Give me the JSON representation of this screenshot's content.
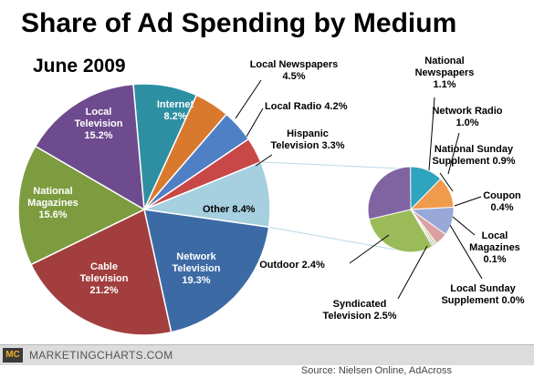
{
  "title": "Share of Ad Spending by Medium",
  "subtitle": "June 2009",
  "footer": {
    "logo": "MC",
    "site": "MARKETINGCHARTS.COM",
    "source": "Source: Nielsen Online, AdAcross"
  },
  "colors": {
    "internet": "#2e8fa3",
    "local_newspapers": "#d9792e",
    "local_radio": "#4f7fc4",
    "hispanic_tv": "#c84747",
    "other": "#a6cfdf",
    "network_tv": "#3c6aa5",
    "cable_tv": "#a23e3e",
    "national_magazines": "#7d9c40",
    "local_tv": "#6e4a8e",
    "national_newspapers": "#2ea4bf",
    "network_radio": "#f09a4c",
    "national_sunday_supplement": "#98a8d8",
    "coupon": "#dba0a0",
    "local_magazines": "#c8dba0",
    "local_sunday_supplement": "#b6a4cc",
    "syndicated_tv": "#9bbb59",
    "outdoor": "#8064a2"
  },
  "chart_data": [
    {
      "type": "pie",
      "title": "Share of Ad Spending by Medium",
      "subtitle": "June 2009",
      "slices": [
        {
          "key": "internet",
          "name": "Internet",
          "value_label": "8.2%",
          "value": 8.2,
          "color": "#2e8fa3"
        },
        {
          "key": "local_newspapers",
          "name": "Local Newspapers",
          "value_label": "4.5%",
          "value": 4.5,
          "color": "#d9792e"
        },
        {
          "key": "local_radio",
          "name": "Local Radio",
          "value_label": "4.2%",
          "value": 4.2,
          "color": "#4f7fc4"
        },
        {
          "key": "hispanic_tv",
          "name": "Hispanic Television",
          "value_label": "3.3%",
          "value": 3.3,
          "color": "#c84747"
        },
        {
          "key": "other",
          "name": "Other",
          "value_label": "8.4%",
          "value": 8.4,
          "color": "#a6cfdf"
        },
        {
          "key": "network_tv",
          "name": "Network Television",
          "value_label": "19.3%",
          "value": 19.3,
          "color": "#3c6aa5"
        },
        {
          "key": "cable_tv",
          "name": "Cable Television",
          "value_label": "21.2%",
          "value": 21.2,
          "color": "#a23e3e"
        },
        {
          "key": "national_magazines",
          "name": "National Magazines",
          "value_label": "15.6%",
          "value": 15.6,
          "color": "#7d9c40"
        },
        {
          "key": "local_tv",
          "name": "Local Television",
          "value_label": "15.2%",
          "value": 15.2,
          "color": "#6e4a8e"
        }
      ]
    },
    {
      "type": "pie",
      "title": "Other 8.4%",
      "slices": [
        {
          "key": "national_newspapers",
          "name": "National Newspapers",
          "value_label": "1.1%",
          "value": 1.1,
          "color": "#2ea4bf"
        },
        {
          "key": "network_radio",
          "name": "Network Radio",
          "value_label": "1.0%",
          "value": 1.0,
          "color": "#f09a4c"
        },
        {
          "key": "national_sunday_supplement",
          "name": "National Sunday Supplement",
          "value_label": "0.9%",
          "value": 0.9,
          "color": "#98a8d8"
        },
        {
          "key": "coupon",
          "name": "Coupon",
          "value_label": "0.4%",
          "value": 0.4,
          "color": "#dba0a0"
        },
        {
          "key": "local_magazines",
          "name": "Local Magazines",
          "value_label": "0.1%",
          "value": 0.1,
          "color": "#c8dba0"
        },
        {
          "key": "local_sunday_supplement",
          "name": "Local Sunday Supplement",
          "value_label": "0.0%",
          "value": 0.0,
          "color": "#b6a4cc"
        },
        {
          "key": "syndicated_tv",
          "name": "Syndicated Television",
          "value_label": "2.5%",
          "value": 2.5,
          "color": "#9bbb59"
        },
        {
          "key": "outdoor",
          "name": "Outdoor",
          "value_label": "2.4%",
          "value": 2.4,
          "color": "#8064a2"
        }
      ]
    }
  ]
}
